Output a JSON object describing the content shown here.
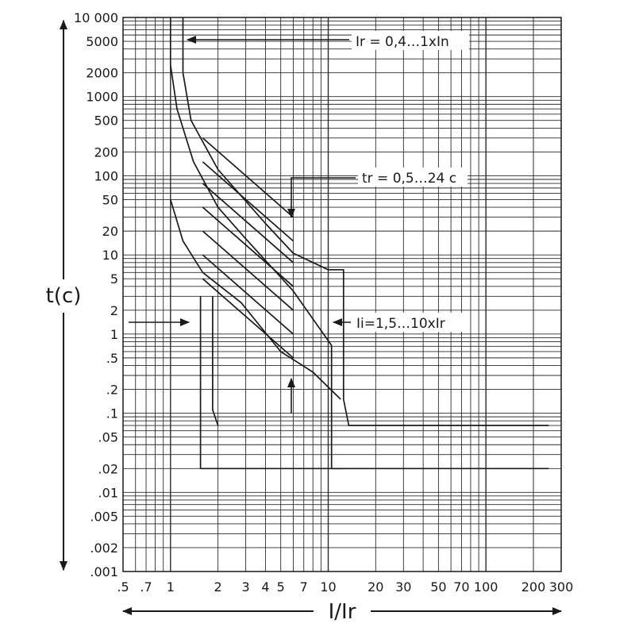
{
  "chart_data": {
    "type": "line",
    "xscale": "log",
    "yscale": "log",
    "xlim": [
      0.5,
      300
    ],
    "ylim": [
      0.001,
      10000
    ],
    "grid": true,
    "xlabel": "I/Ir",
    "ylabel": "t(c)",
    "x_ticks": [
      {
        "value": 0.5,
        "label": ".5"
      },
      {
        "value": 0.7,
        "label": ".7"
      },
      {
        "value": 1,
        "label": "1"
      },
      {
        "value": 2,
        "label": "2"
      },
      {
        "value": 3,
        "label": "3"
      },
      {
        "value": 4,
        "label": "4"
      },
      {
        "value": 5,
        "label": "5"
      },
      {
        "value": 7,
        "label": "7"
      },
      {
        "value": 10,
        "label": "10"
      },
      {
        "value": 20,
        "label": "20"
      },
      {
        "value": 30,
        "label": "30"
      },
      {
        "value": 50,
        "label": "50"
      },
      {
        "value": 70,
        "label": "70"
      },
      {
        "value": 100,
        "label": "100"
      },
      {
        "value": 200,
        "label": "200"
      },
      {
        "value": 300,
        "label": "300"
      }
    ],
    "y_ticks": [
      {
        "value": 10000,
        "label": "10 000"
      },
      {
        "value": 5000,
        "label": "5000"
      },
      {
        "value": 2000,
        "label": "2000"
      },
      {
        "value": 1000,
        "label": "1000"
      },
      {
        "value": 500,
        "label": "500"
      },
      {
        "value": 200,
        "label": "200"
      },
      {
        "value": 100,
        "label": "100"
      },
      {
        "value": 50,
        "label": "50"
      },
      {
        "value": 20,
        "label": "20"
      },
      {
        "value": 10,
        "label": "10"
      },
      {
        "value": 5,
        "label": "5"
      },
      {
        "value": 2,
        "label": "2"
      },
      {
        "value": 1,
        "label": "1"
      },
      {
        "value": 0.5,
        "label": ".5"
      },
      {
        "value": 0.2,
        "label": ".2"
      },
      {
        "value": 0.1,
        "label": ".1"
      },
      {
        "value": 0.05,
        "label": ".05"
      },
      {
        "value": 0.02,
        "label": ".02"
      },
      {
        "value": 0.01,
        "label": ".01"
      },
      {
        "value": 0.005,
        "label": ".005"
      },
      {
        "value": 0.002,
        "label": ".002"
      },
      {
        "value": 0.001,
        "label": ".001"
      }
    ],
    "series": [
      {
        "points": [
          [
            1.0,
            10000
          ],
          [
            1.0,
            2500
          ],
          [
            1.1,
            700
          ],
          [
            1.4,
            150
          ],
          [
            2.0,
            40
          ],
          [
            3.0,
            16
          ],
          [
            6.0,
            3.5
          ],
          [
            10.5,
            0.72
          ],
          [
            10.5,
            0.02
          ],
          [
            12.5,
            0.02
          ]
        ]
      },
      {
        "points": [
          [
            1.2,
            10000
          ],
          [
            1.2,
            2000
          ],
          [
            1.35,
            500
          ],
          [
            2.0,
            120
          ],
          [
            4.0,
            25
          ],
          [
            6.0,
            10.5
          ],
          [
            10.0,
            6.5
          ],
          [
            12.5,
            6.5
          ],
          [
            12.5,
            0.15
          ],
          [
            13.5,
            0.07
          ],
          [
            250,
            0.07
          ]
        ]
      },
      {
        "points": [
          [
            1.0,
            50
          ],
          [
            1.2,
            15
          ],
          [
            1.6,
            6
          ],
          [
            2.8,
            2.5
          ],
          [
            5.0,
            0.6
          ],
          [
            8.0,
            0.33
          ],
          [
            12.0,
            0.15
          ]
        ]
      },
      {
        "points": [
          [
            1.55,
            3
          ],
          [
            1.55,
            0.02
          ],
          [
            250,
            0.02
          ]
        ]
      },
      {
        "points": [
          [
            1.85,
            3
          ],
          [
            1.85,
            0.11
          ],
          [
            2.0,
            0.07
          ]
        ]
      },
      {
        "points": [
          [
            1.6,
            300
          ],
          [
            6.0,
            30
          ]
        ]
      },
      {
        "points": [
          [
            1.6,
            150
          ],
          [
            6.0,
            15
          ]
        ]
      },
      {
        "points": [
          [
            1.6,
            80
          ],
          [
            6.0,
            8
          ]
        ]
      },
      {
        "points": [
          [
            1.6,
            40
          ],
          [
            6.0,
            4
          ]
        ]
      },
      {
        "points": [
          [
            1.6,
            20
          ],
          [
            6.0,
            2
          ]
        ]
      },
      {
        "points": [
          [
            1.6,
            10
          ],
          [
            6.0,
            1
          ]
        ]
      },
      {
        "points": [
          [
            1.6,
            5
          ],
          [
            6.0,
            0.5
          ]
        ]
      }
    ],
    "annotations": [
      {
        "label": "Ir = 0,4…1xIn"
      },
      {
        "label": "tr = 0,5…24 c"
      },
      {
        "label": "Ii=1,5…10xIr"
      }
    ]
  }
}
